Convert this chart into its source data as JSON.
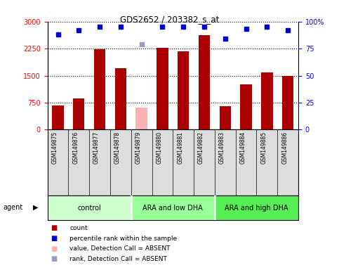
{
  "title": "GDS2652 / 203382_s_at",
  "samples": [
    "GSM149875",
    "GSM149876",
    "GSM149877",
    "GSM149878",
    "GSM149879",
    "GSM149880",
    "GSM149881",
    "GSM149882",
    "GSM149883",
    "GSM149884",
    "GSM149885",
    "GSM149886"
  ],
  "bar_values": [
    670,
    860,
    2240,
    1700,
    null,
    2270,
    2170,
    2630,
    650,
    1250,
    1580,
    1490
  ],
  "absent_bar_value": 620,
  "absent_bar_index": 4,
  "percentile_dots": [
    88,
    92,
    95,
    95,
    79,
    95,
    95,
    95,
    84,
    93,
    95,
    92
  ],
  "absent_rank_index": 4,
  "bar_color": "#AA0000",
  "absent_bar_color": "#FFB0B0",
  "dot_color": "#0000CC",
  "absent_dot_color": "#9999CC",
  "ylim_left": [
    0,
    3000
  ],
  "ylim_right": [
    0,
    100
  ],
  "yticks_left": [
    0,
    750,
    1500,
    2250,
    3000
  ],
  "yticks_right": [
    0,
    25,
    50,
    75,
    100
  ],
  "groups": [
    {
      "label": "control",
      "start": 0,
      "end": 3,
      "color": "#CCFFCC"
    },
    {
      "label": "ARA and low DHA",
      "start": 4,
      "end": 7,
      "color": "#99FF99"
    },
    {
      "label": "ARA and high DHA",
      "start": 8,
      "end": 11,
      "color": "#55EE55"
    }
  ],
  "legend_items": [
    {
      "color": "#AA0000",
      "label": "count"
    },
    {
      "color": "#0000CC",
      "label": "percentile rank within the sample"
    },
    {
      "color": "#FFB0B0",
      "label": "value, Detection Call = ABSENT"
    },
    {
      "color": "#9999CC",
      "label": "rank, Detection Call = ABSENT"
    }
  ],
  "bar_width": 0.55
}
